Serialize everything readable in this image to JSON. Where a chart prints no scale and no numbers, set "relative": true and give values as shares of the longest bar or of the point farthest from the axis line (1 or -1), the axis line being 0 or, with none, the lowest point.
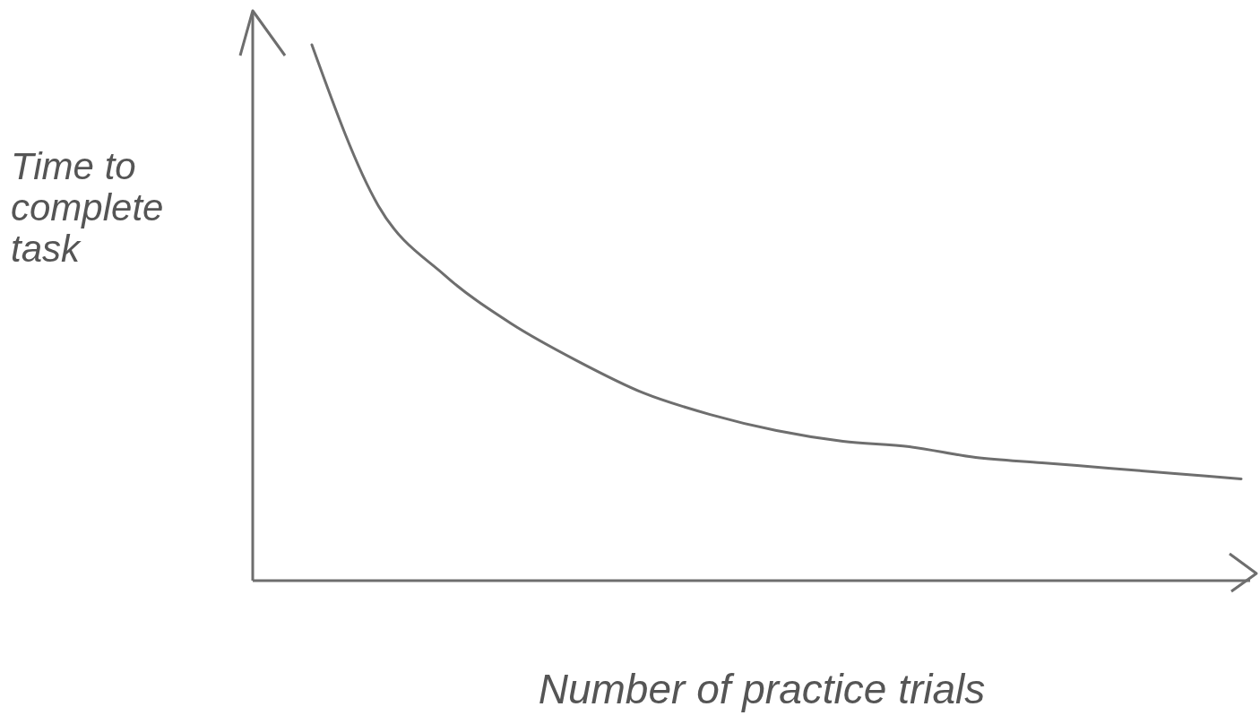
{
  "chart_data": {
    "type": "line",
    "relative": true,
    "xlabel": "Number of practice trials",
    "ylabel": "Time to complete task",
    "categories": [
      null,
      null,
      null,
      null,
      null,
      null,
      null,
      null,
      null,
      null,
      null,
      null,
      null,
      null,
      null
    ],
    "series": [
      {
        "color": "#6e6e6e",
        "values": [
          1.0,
          0.7,
          0.57,
          0.48,
          0.41,
          0.35,
          0.31,
          0.28,
          0.26,
          0.25,
          0.23,
          0.22,
          0.21,
          0.2,
          0.19
        ]
      }
    ],
    "marker": "none",
    "line_style": "solid"
  }
}
